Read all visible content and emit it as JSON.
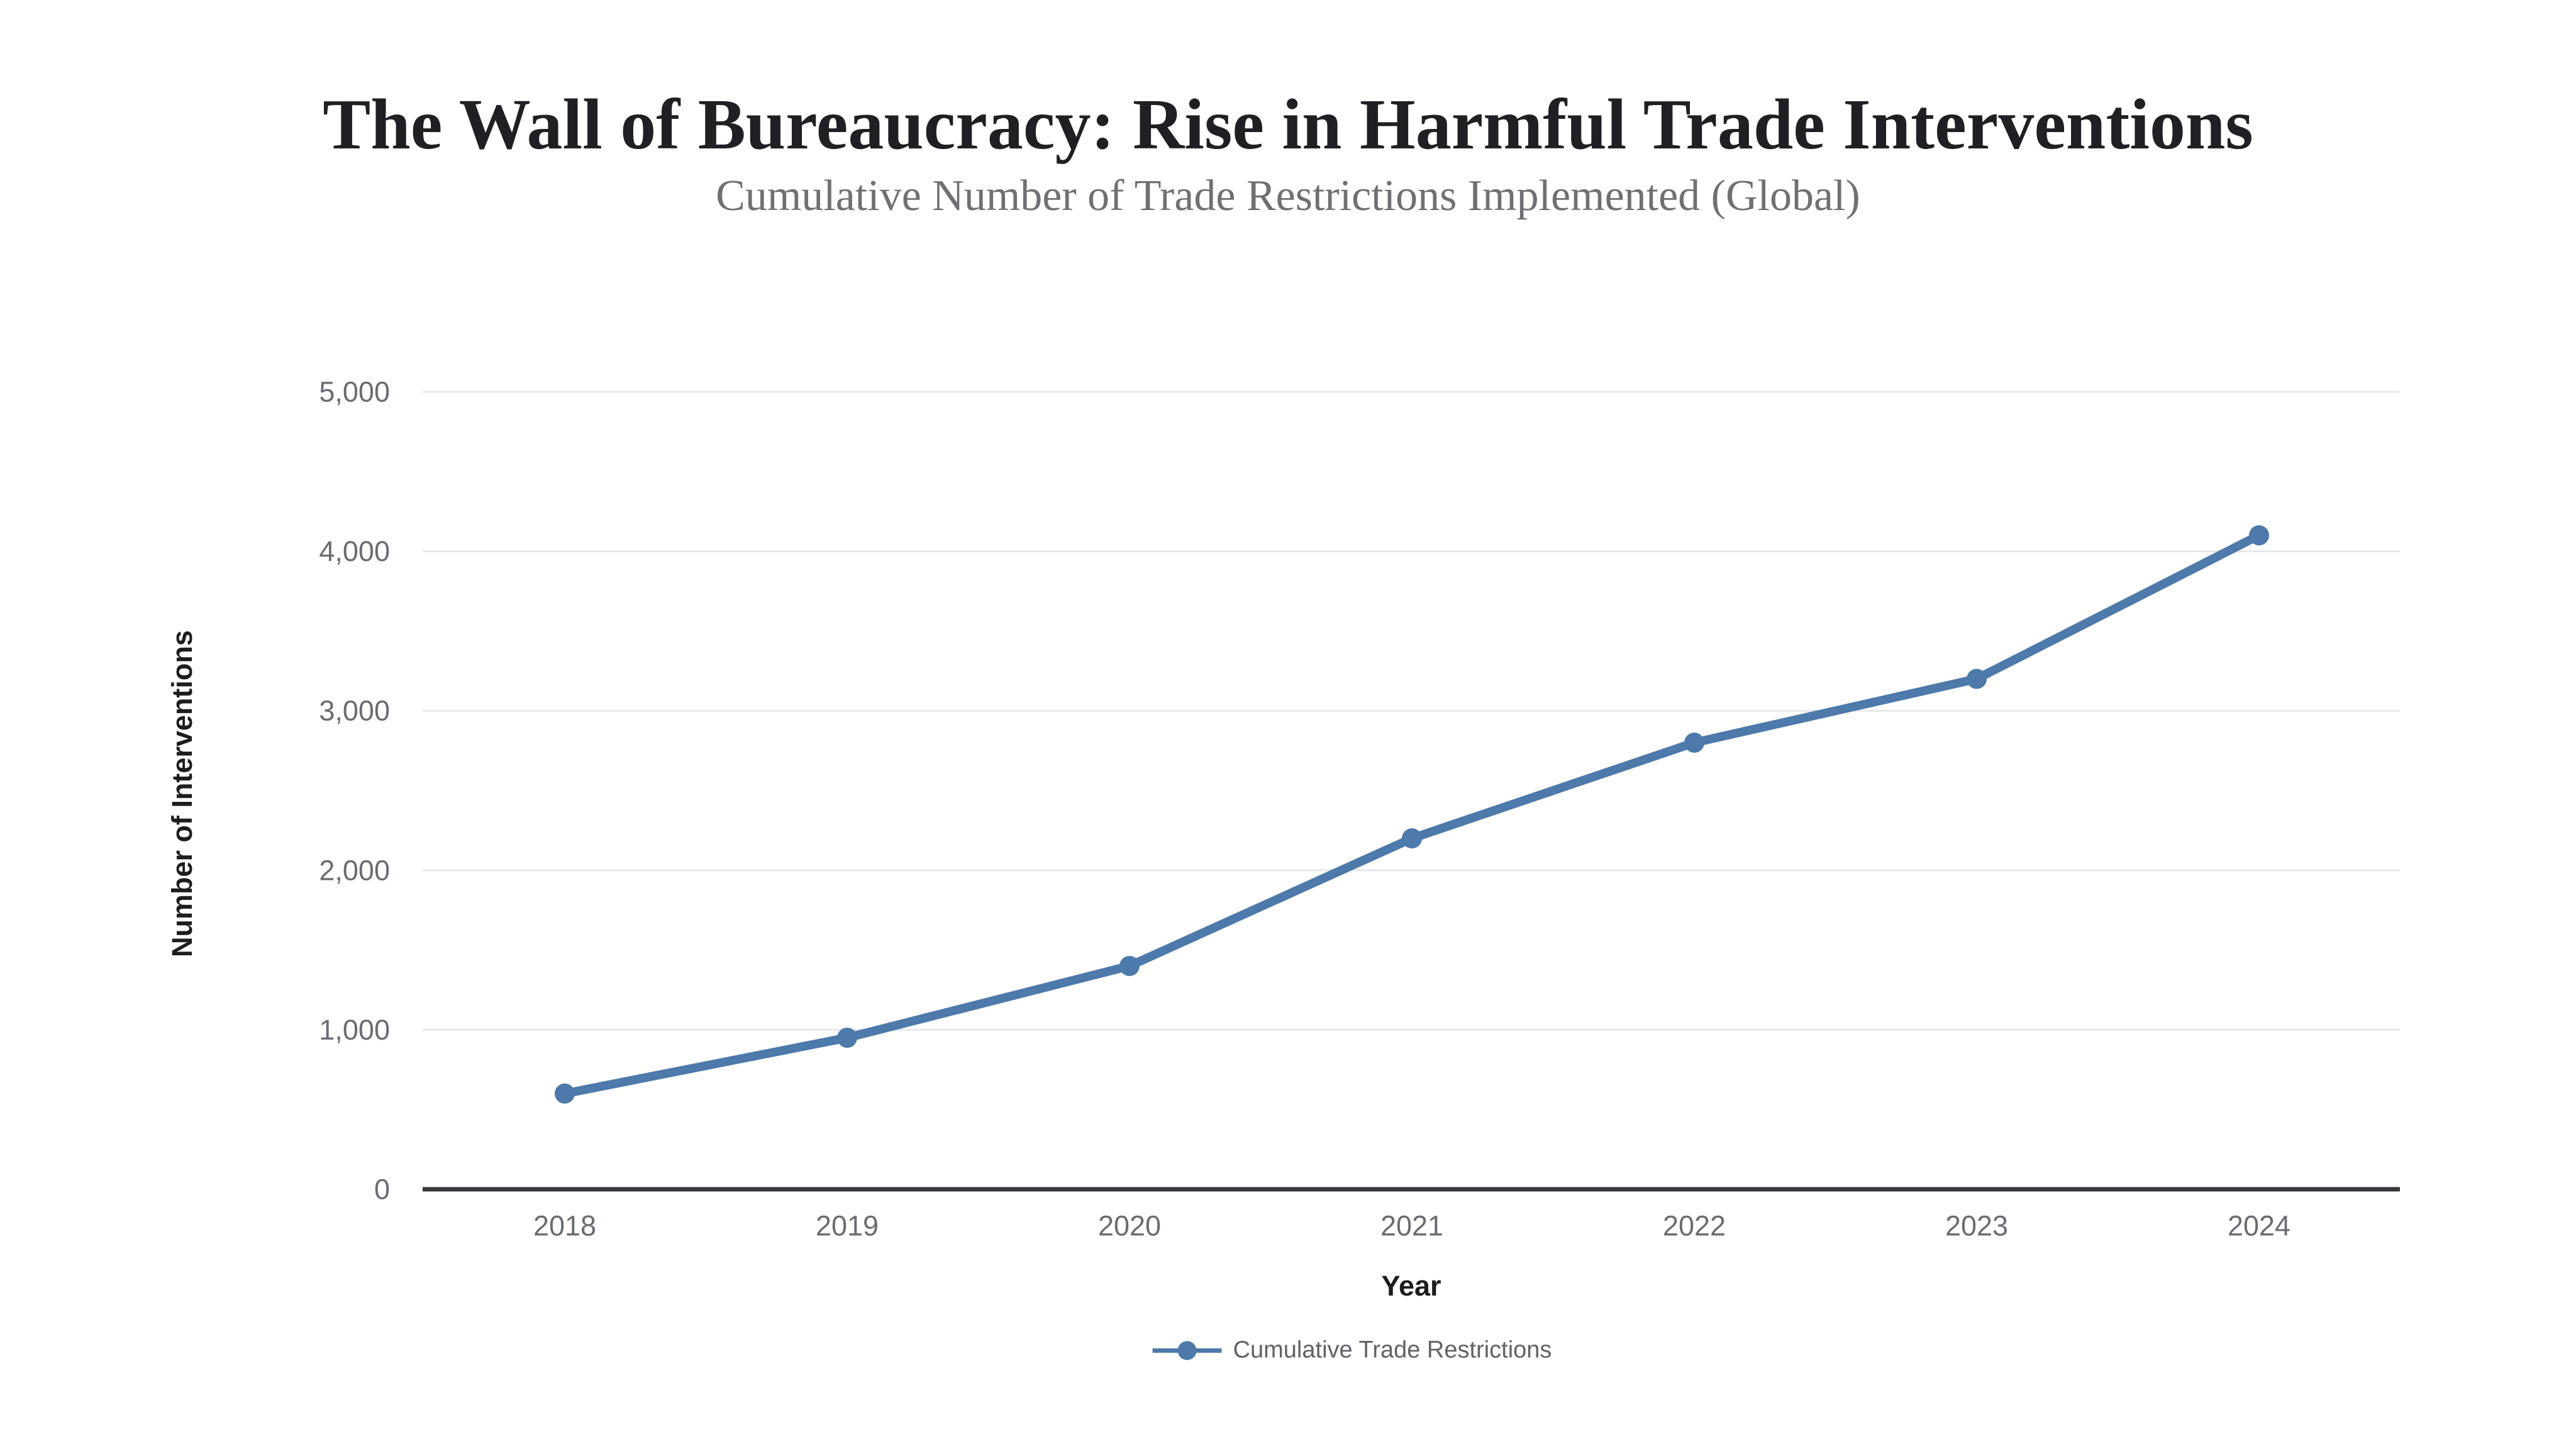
{
  "header": {
    "title": "The Wall of Bureaucracy: Rise in Harmful Trade Interventions",
    "subtitle": "Cumulative Number of Trade Restrictions Implemented (Global)"
  },
  "chart_data": {
    "type": "line",
    "title": "The Wall of Bureaucracy: Rise in Harmful Trade Interventions",
    "subtitle": "Cumulative Number of Trade Restrictions Implemented (Global)",
    "xlabel": "Year",
    "ylabel": "Number of Interventions",
    "categories": [
      "2018",
      "2019",
      "2020",
      "2021",
      "2022",
      "2023",
      "2024"
    ],
    "series": [
      {
        "name": "Cumulative Trade Restrictions",
        "values": [
          600,
          950,
          1400,
          2200,
          2800,
          3200,
          4100
        ],
        "color": "#4d79ab",
        "marker": "circle"
      }
    ],
    "ylim": [
      0,
      5000
    ],
    "yticks": [
      0,
      1000,
      2000,
      3000,
      4000,
      5000
    ],
    "ytick_labels": [
      "0",
      "1,000",
      "2,000",
      "3,000",
      "4,000",
      "5,000"
    ],
    "grid": "horizontal-only",
    "legend_position": "bottom-center",
    "colors": {
      "line": "#4d79ab",
      "grid": "#e7e8ec",
      "axis": "#37373b",
      "tick_text": "#686d73",
      "title_text": "#202024",
      "subtitle_text": "#707074",
      "legend_text": "#5f6368"
    }
  }
}
